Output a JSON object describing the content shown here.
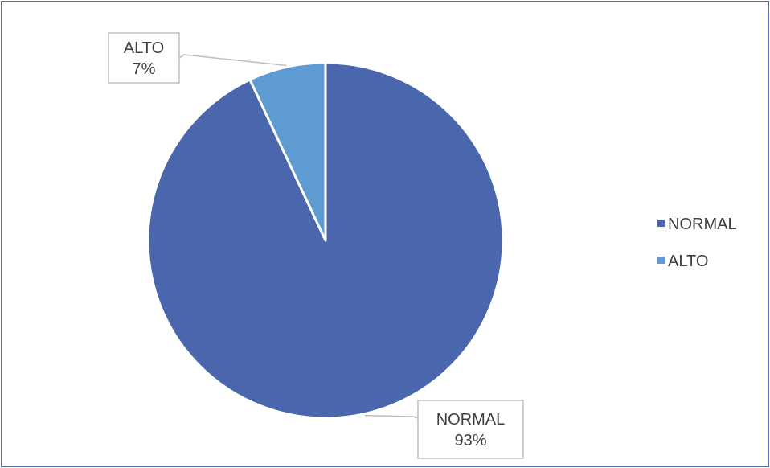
{
  "chart_data": {
    "type": "pie",
    "title": "",
    "slices": [
      {
        "name": "NORMAL",
        "value": 93,
        "percent_label": "93%",
        "color": "#4a66ac"
      },
      {
        "name": "ALTO",
        "value": 7,
        "percent_label": "7%",
        "color": "#5e9bd2"
      }
    ],
    "legend": {
      "position": "right",
      "entries": [
        "NORMAL",
        "ALTO"
      ]
    },
    "data_labels": {
      "style": "callout",
      "show_category": true,
      "show_percent": true
    }
  }
}
